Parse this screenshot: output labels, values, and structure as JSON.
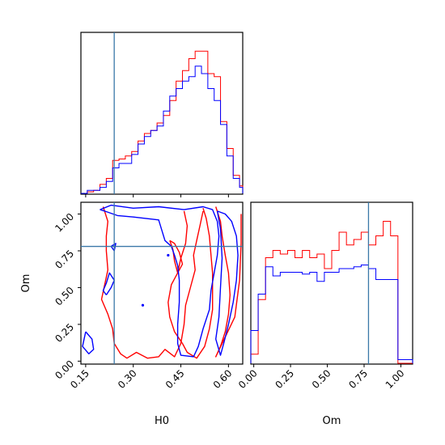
{
  "chart_data": {
    "type": "corner",
    "parameters": [
      "H0",
      "Om"
    ],
    "truths": {
      "H0": 0.24,
      "Om": 0.78
    },
    "colors": {
      "series_a": "#ff0000",
      "series_b": "#0000ff",
      "truth": "#3a78a8"
    },
    "H0_range": [
      0.135,
      0.645
    ],
    "Om_range": [
      -0.02,
      1.08
    ],
    "H0_ticks": [
      "0.15",
      "0.30",
      "0.45",
      "0.60"
    ],
    "Om_ticks": [
      "0.00",
      "0.25",
      "0.50",
      "0.75",
      "1.00"
    ],
    "H0_bin_edges": [
      0.135,
      0.155,
      0.175,
      0.195,
      0.215,
      0.235,
      0.255,
      0.275,
      0.295,
      0.315,
      0.335,
      0.355,
      0.375,
      0.395,
      0.415,
      0.435,
      0.455,
      0.475,
      0.495,
      0.515,
      0.535,
      0.555,
      0.575,
      0.595,
      0.615,
      0.635,
      0.645
    ],
    "H0_hist_red": [
      0,
      0.01,
      0.02,
      0.06,
      0.1,
      0.22,
      0.23,
      0.25,
      0.28,
      0.35,
      0.4,
      0.42,
      0.47,
      0.52,
      0.62,
      0.75,
      0.82,
      0.9,
      0.95,
      0.95,
      0.8,
      0.78,
      0.48,
      0.3,
      0.12,
      0.05
    ],
    "H0_hist_blue": [
      0,
      0.02,
      0.02,
      0.04,
      0.08,
      0.17,
      0.2,
      0.2,
      0.26,
      0.33,
      0.38,
      0.42,
      0.45,
      0.55,
      0.65,
      0.7,
      0.75,
      0.78,
      0.85,
      0.8,
      0.7,
      0.62,
      0.46,
      0.25,
      0.1,
      0.04
    ],
    "Om_bin_edges": [
      -0.02,
      0.03,
      0.08,
      0.13,
      0.18,
      0.23,
      0.28,
      0.33,
      0.38,
      0.43,
      0.48,
      0.53,
      0.58,
      0.63,
      0.68,
      0.73,
      0.78,
      0.83,
      0.88,
      0.93,
      0.98,
      1.03,
      1.08
    ],
    "Om_hist_red": [
      0.05,
      0.35,
      0.58,
      0.62,
      0.6,
      0.62,
      0.58,
      0.62,
      0.58,
      0.6,
      0.52,
      0.62,
      0.72,
      0.65,
      0.68,
      0.72,
      0.65,
      0.7,
      0.78,
      0.7,
      0.0,
      0.0
    ],
    "Om_hist_blue": [
      0.18,
      0.38,
      0.53,
      0.48,
      0.5,
      0.5,
      0.5,
      0.49,
      0.5,
      0.45,
      0.5,
      0.5,
      0.52,
      0.52,
      0.53,
      0.54,
      0.52,
      0.46,
      0.46,
      0.46,
      0.02,
      0.02
    ],
    "contours_red": [
      [
        [
          0.205,
          1.05
        ],
        [
          0.22,
          0.95
        ],
        [
          0.215,
          0.85
        ],
        [
          0.215,
          0.75
        ],
        [
          0.22,
          0.62
        ],
        [
          0.21,
          0.52
        ],
        [
          0.2,
          0.42
        ],
        [
          0.22,
          0.32
        ],
        [
          0.235,
          0.22
        ],
        [
          0.24,
          0.12
        ],
        [
          0.26,
          0.05
        ],
        [
          0.28,
          0.02
        ],
        [
          0.31,
          0.06
        ],
        [
          0.345,
          0.02
        ],
        [
          0.38,
          0.03
        ],
        [
          0.4,
          0.08
        ],
        [
          0.43,
          0.03
        ],
        [
          0.45,
          0.12
        ],
        [
          0.46,
          0.25
        ],
        [
          0.465,
          0.38
        ],
        [
          0.48,
          0.5
        ],
        [
          0.495,
          0.62
        ],
        [
          0.49,
          0.72
        ],
        [
          0.5,
          0.82
        ],
        [
          0.51,
          0.92
        ],
        [
          0.52,
          1.02
        ]
      ],
      [
        [
          0.46,
          1.02
        ],
        [
          0.47,
          0.92
        ],
        [
          0.465,
          0.8
        ],
        [
          0.45,
          0.7
        ],
        [
          0.44,
          0.6
        ],
        [
          0.42,
          0.52
        ],
        [
          0.41,
          0.4
        ],
        [
          0.415,
          0.3
        ],
        [
          0.43,
          0.2
        ],
        [
          0.455,
          0.12
        ],
        [
          0.47,
          0.06
        ],
        [
          0.5,
          0.02
        ],
        [
          0.525,
          0.1
        ],
        [
          0.54,
          0.22
        ],
        [
          0.55,
          0.35
        ],
        [
          0.55,
          0.48
        ],
        [
          0.55,
          0.6
        ],
        [
          0.545,
          0.72
        ],
        [
          0.54,
          0.85
        ],
        [
          0.53,
          0.97
        ],
        [
          0.52,
          1.04
        ]
      ],
      [
        [
          0.56,
          1.05
        ],
        [
          0.575,
          0.95
        ],
        [
          0.58,
          0.85
        ],
        [
          0.59,
          0.72
        ],
        [
          0.6,
          0.6
        ],
        [
          0.605,
          0.45
        ],
        [
          0.6,
          0.32
        ],
        [
          0.59,
          0.2
        ],
        [
          0.575,
          0.1
        ],
        [
          0.56,
          0.03
        ],
        [
          0.62,
          0.3
        ],
        [
          0.635,
          0.55
        ],
        [
          0.64,
          0.8
        ],
        [
          0.64,
          1.0
        ]
      ],
      [
        [
          0.415,
          0.82
        ],
        [
          0.425,
          0.76
        ],
        [
          0.43,
          0.68
        ],
        [
          0.44,
          0.6
        ],
        [
          0.455,
          0.66
        ],
        [
          0.445,
          0.74
        ],
        [
          0.43,
          0.8
        ],
        [
          0.415,
          0.82
        ]
      ]
    ],
    "contours_blue": [
      [
        [
          0.195,
          1.03
        ],
        [
          0.23,
          1.06
        ],
        [
          0.3,
          1.04
        ],
        [
          0.38,
          1.05
        ],
        [
          0.46,
          1.03
        ],
        [
          0.52,
          1.05
        ],
        [
          0.55,
          1.03
        ],
        [
          0.565,
          0.95
        ],
        [
          0.57,
          0.85
        ],
        [
          0.565,
          0.72
        ],
        [
          0.555,
          0.6
        ],
        [
          0.545,
          0.48
        ],
        [
          0.54,
          0.35
        ],
        [
          0.52,
          0.22
        ],
        [
          0.505,
          0.1
        ],
        [
          0.49,
          0.03
        ],
        [
          0.45,
          0.04
        ],
        [
          0.44,
          0.12
        ],
        [
          0.44,
          0.25
        ],
        [
          0.445,
          0.4
        ],
        [
          0.445,
          0.55
        ],
        [
          0.44,
          0.65
        ],
        [
          0.43,
          0.72
        ],
        [
          0.42,
          0.78
        ],
        [
          0.4,
          0.82
        ],
        [
          0.38,
          0.96
        ],
        [
          0.3,
          0.98
        ],
        [
          0.25,
          0.99
        ],
        [
          0.21,
          1.02
        ],
        [
          0.195,
          1.03
        ]
      ],
      [
        [
          0.565,
          1.02
        ],
        [
          0.59,
          1.0
        ],
        [
          0.61,
          0.95
        ],
        [
          0.625,
          0.85
        ],
        [
          0.63,
          0.72
        ],
        [
          0.625,
          0.55
        ],
        [
          0.615,
          0.4
        ],
        [
          0.6,
          0.25
        ],
        [
          0.585,
          0.12
        ],
        [
          0.575,
          0.04
        ],
        [
          0.56,
          0.15
        ],
        [
          0.57,
          0.3
        ],
        [
          0.575,
          0.5
        ],
        [
          0.58,
          0.7
        ],
        [
          0.575,
          0.9
        ],
        [
          0.565,
          1.02
        ]
      ],
      [
        [
          0.15,
          0.2
        ],
        [
          0.17,
          0.15
        ],
        [
          0.175,
          0.08
        ],
        [
          0.16,
          0.05
        ],
        [
          0.14,
          0.1
        ],
        [
          0.15,
          0.2
        ]
      ],
      [
        [
          0.215,
          0.45
        ],
        [
          0.23,
          0.5
        ],
        [
          0.24,
          0.55
        ],
        [
          0.225,
          0.6
        ],
        [
          0.215,
          0.53
        ],
        [
          0.205,
          0.48
        ],
        [
          0.215,
          0.45
        ]
      ],
      [
        [
          0.23,
          0.78
        ],
        [
          0.245,
          0.8
        ],
        [
          0.24,
          0.75
        ],
        [
          0.23,
          0.78
        ]
      ]
    ]
  }
}
